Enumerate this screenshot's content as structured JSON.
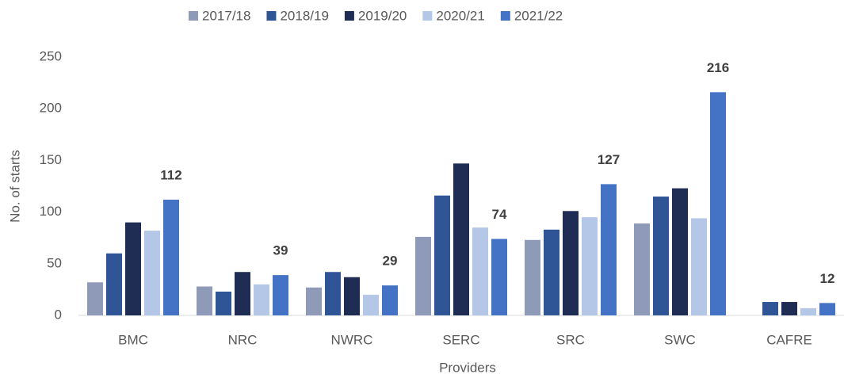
{
  "chart_data": {
    "type": "bar",
    "x_label": "Providers",
    "y_label": "No. of starts",
    "categories": [
      "BMC",
      "NRC",
      "NWRC",
      "SERC",
      "SRC",
      "SWC",
      "CAFRE"
    ],
    "series": [
      {
        "name": "2017/18",
        "color": "#8e9ab8",
        "values": [
          32,
          28,
          27,
          76,
          73,
          89,
          null
        ]
      },
      {
        "name": "2018/19",
        "color": "#2f5597",
        "values": [
          60,
          23,
          42,
          116,
          83,
          115,
          13
        ]
      },
      {
        "name": "2019/20",
        "color": "#1f2c54",
        "values": [
          90,
          42,
          37,
          147,
          101,
          123,
          13
        ]
      },
      {
        "name": "2020/21",
        "color": "#b4c7e7",
        "values": [
          82,
          30,
          20,
          85,
          95,
          94,
          7
        ]
      },
      {
        "name": "2021/22",
        "color": "#4472c4",
        "values": [
          112,
          39,
          29,
          74,
          127,
          216,
          12
        ],
        "data_labels": true
      }
    ],
    "ylim": [
      0,
      250
    ],
    "yticks": [
      0,
      50,
      100,
      150,
      200,
      250
    ],
    "grid": false,
    "legend": "top"
  }
}
